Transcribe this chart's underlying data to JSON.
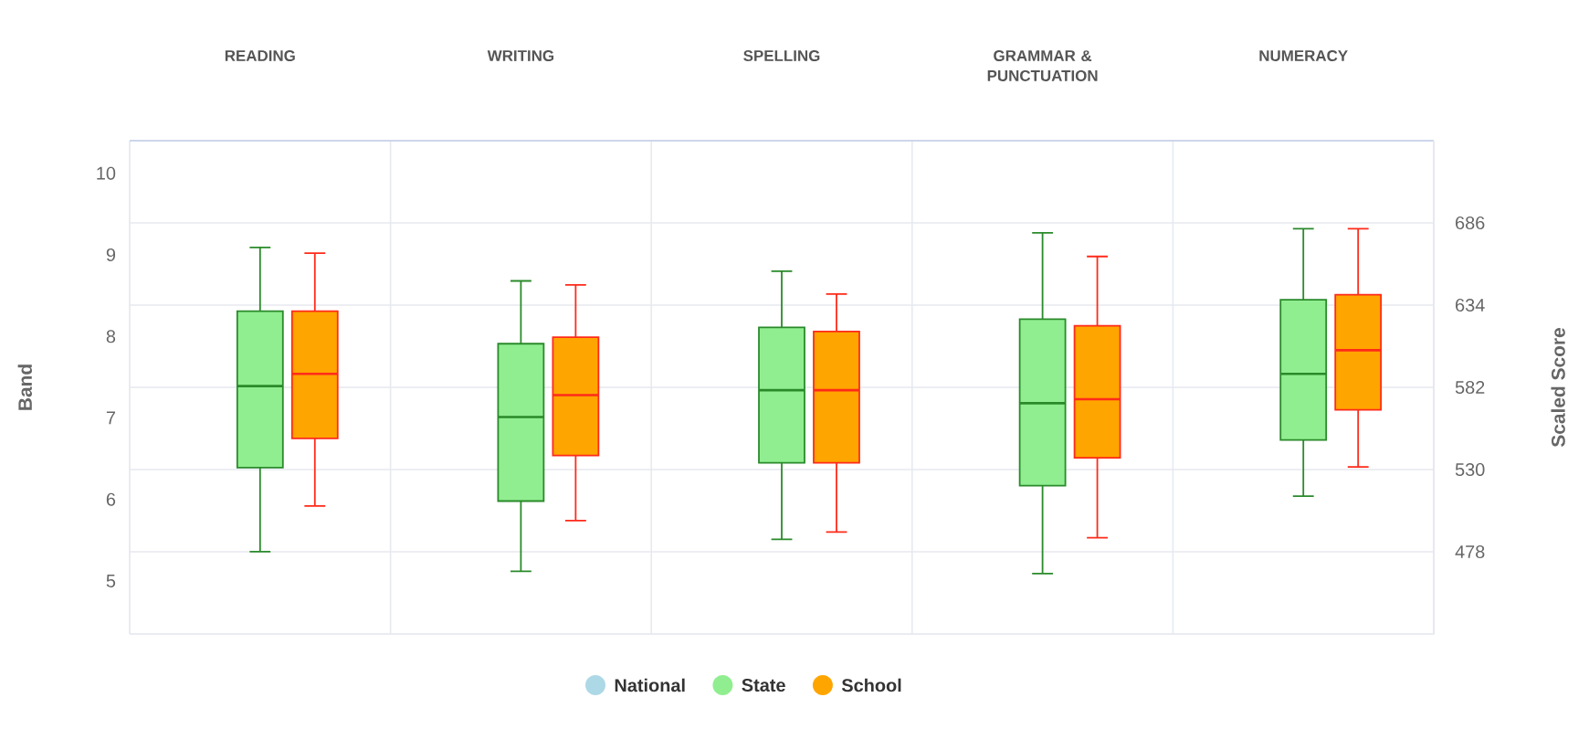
{
  "chart_data": {
    "type": "box",
    "categories": [
      "READING",
      "WRITING",
      "SPELLING",
      "GRAMMAR & PUNCTUATION",
      "NUMERACY"
    ],
    "ylabel": "Band",
    "y2label": "Scaled Score",
    "ylim": [
      4.35,
      10.4
    ],
    "yticks": [
      5,
      6,
      7,
      8,
      9,
      10
    ],
    "y2lim": [
      426,
      738
    ],
    "y2ticks": [
      478,
      530,
      582,
      634,
      686
    ],
    "grid": true,
    "legend": "bottom",
    "series": [
      {
        "name": "National",
        "color": "#add8e6",
        "boxes": [
          null,
          null,
          null,
          null,
          null
        ]
      },
      {
        "name": "State",
        "color": "#90ee90",
        "boxes": [
          {
            "low": 5.36,
            "q1": 6.39,
            "median": 7.39,
            "q3": 8.31,
            "high": 9.09
          },
          {
            "low": 5.12,
            "q1": 5.98,
            "median": 7.01,
            "q3": 7.91,
            "high": 8.68
          },
          {
            "low": 5.51,
            "q1": 6.45,
            "median": 7.34,
            "q3": 8.11,
            "high": 8.8
          },
          {
            "low": 5.09,
            "q1": 6.17,
            "median": 7.18,
            "q3": 8.21,
            "high": 9.27
          },
          {
            "low": 6.04,
            "q1": 6.73,
            "median": 7.54,
            "q3": 8.45,
            "high": 9.32
          }
        ]
      },
      {
        "name": "School",
        "color": "#ffa500",
        "boxes": [
          {
            "low": 5.92,
            "q1": 6.75,
            "median": 7.54,
            "q3": 8.31,
            "high": 9.02
          },
          {
            "low": 5.74,
            "q1": 6.54,
            "median": 7.28,
            "q3": 7.99,
            "high": 8.63
          },
          {
            "low": 5.6,
            "q1": 6.45,
            "median": 7.34,
            "q3": 8.06,
            "high": 8.52
          },
          {
            "low": 5.53,
            "q1": 6.51,
            "median": 7.23,
            "q3": 8.13,
            "high": 8.98
          },
          {
            "low": 6.4,
            "q1": 7.1,
            "median": 7.83,
            "q3": 8.51,
            "high": 9.32
          }
        ]
      }
    ]
  }
}
